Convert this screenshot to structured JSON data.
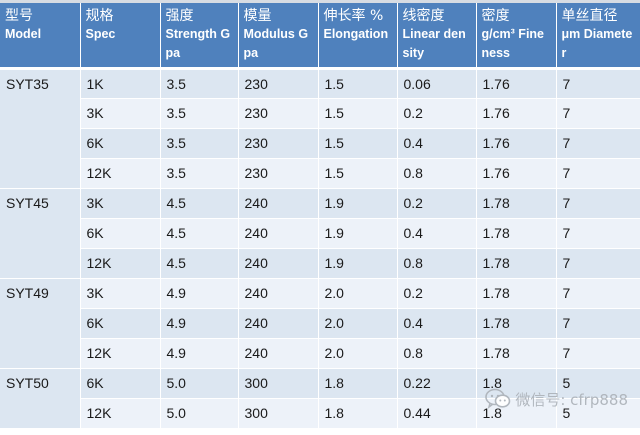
{
  "table": {
    "columns": [
      {
        "cn": "型号",
        "en": "Model"
      },
      {
        "cn": "规格",
        "en": "Spec"
      },
      {
        "cn": "强度",
        "en": "Strength Gpa"
      },
      {
        "cn": "模量",
        "en": "Modulus Gpa"
      },
      {
        "cn": "伸长率 %",
        "en": "Elongation"
      },
      {
        "cn": "线密度",
        "en": "Linear density"
      },
      {
        "cn": "密度",
        "en": "g/cm³ Fineness"
      },
      {
        "cn": "单丝直径",
        "en": "μm Diameter"
      }
    ],
    "groups": [
      {
        "model": "SYT35",
        "rows": [
          [
            "1K",
            "3.5",
            "230",
            "1.5",
            "0.06",
            "1.76",
            "7"
          ],
          [
            "3K",
            "3.5",
            "230",
            "1.5",
            "0.2",
            "1.76",
            "7"
          ],
          [
            "6K",
            "3.5",
            "230",
            "1.5",
            "0.4",
            "1.76",
            "7"
          ],
          [
            "12K",
            "3.5",
            "230",
            "1.5",
            "0.8",
            "1.76",
            "7"
          ]
        ]
      },
      {
        "model": "SYT45",
        "rows": [
          [
            "3K",
            "4.5",
            "240",
            "1.9",
            "0.2",
            "1.78",
            "7"
          ],
          [
            "6K",
            "4.5",
            "240",
            "1.9",
            "0.4",
            "1.78",
            "7"
          ],
          [
            "12K",
            "4.5",
            "240",
            "1.9",
            "0.8",
            "1.78",
            "7"
          ]
        ]
      },
      {
        "model": "SYT49",
        "rows": [
          [
            "3K",
            "4.9",
            "240",
            "2.0",
            "0.2",
            "1.78",
            "7"
          ],
          [
            "6K",
            "4.9",
            "240",
            "2.0",
            "0.4",
            "1.78",
            "7"
          ],
          [
            "12K",
            "4.9",
            "240",
            "2.0",
            "0.8",
            "1.78",
            "7"
          ]
        ]
      },
      {
        "model": "SYT50",
        "rows": [
          [
            "6K",
            "5.0",
            "300",
            "1.8",
            "0.22",
            "1.8",
            "5"
          ],
          [
            "12K",
            "5.0",
            "300",
            "1.8",
            "0.44",
            "1.8",
            "5"
          ]
        ]
      }
    ]
  },
  "watermark": {
    "text": "微信号: cfrp888",
    "icon": "wechat-icon"
  },
  "colors": {
    "header_bg": "#4f81bd",
    "row_odd": "#dce6f1",
    "row_even": "#edf2f9"
  }
}
